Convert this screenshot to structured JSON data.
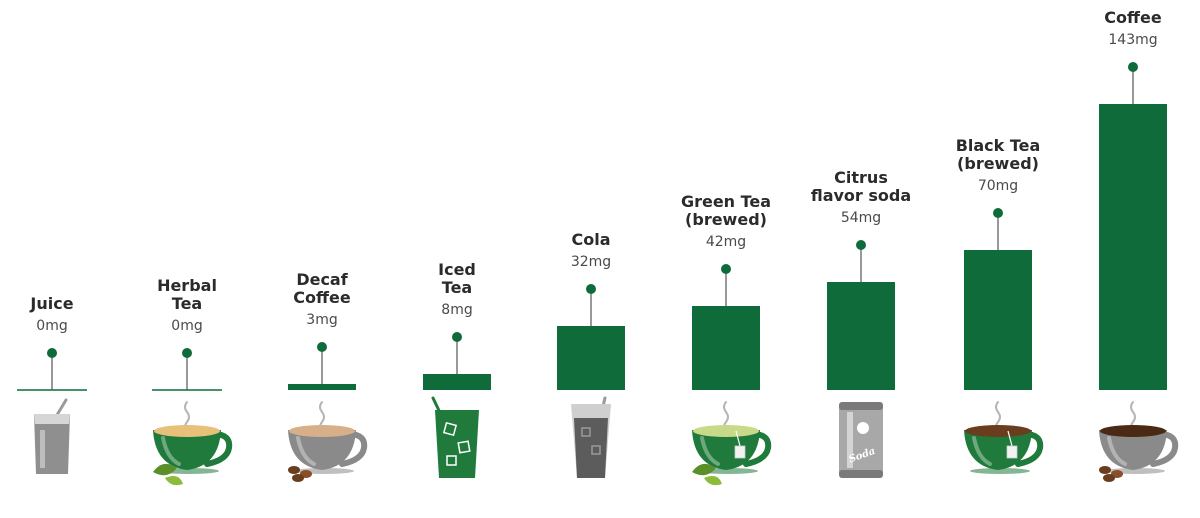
{
  "chart_data": {
    "type": "bar",
    "categories": [
      [
        "Juice"
      ],
      [
        "Herbal",
        "Tea"
      ],
      [
        "Decaf",
        "Coffee"
      ],
      [
        "Iced",
        "Tea"
      ],
      [
        "Cola"
      ],
      [
        "Green Tea",
        "(brewed)"
      ],
      [
        "Citrus",
        "flavor soda"
      ],
      [
        "Black Tea",
        "(brewed)"
      ],
      [
        "Coffee"
      ]
    ],
    "values": [
      0,
      0,
      3,
      8,
      32,
      42,
      54,
      70,
      143
    ],
    "value_labels": [
      "0mg",
      "0mg",
      "3mg",
      "8mg",
      "32mg",
      "42mg",
      "54mg",
      "70mg",
      "143mg"
    ],
    "unit": "mg",
    "ylim": [
      0,
      143
    ],
    "grid": false,
    "legend": "none",
    "icons": [
      "juice-glass-icon",
      "herbal-tea-cup-icon",
      "decaf-coffee-cup-icon",
      "iced-tea-glass-icon",
      "cola-glass-icon",
      "green-tea-cup-icon",
      "soda-can-icon",
      "black-tea-cup-icon",
      "coffee-cup-icon"
    ],
    "soda_can_text": "Soda",
    "colors": {
      "bar": "#0f6b3a",
      "pin": "#0f6b3a",
      "stem": "#555555",
      "cup_green": "#1f7a3c",
      "cup_gray": "#8a8a8a"
    }
  }
}
